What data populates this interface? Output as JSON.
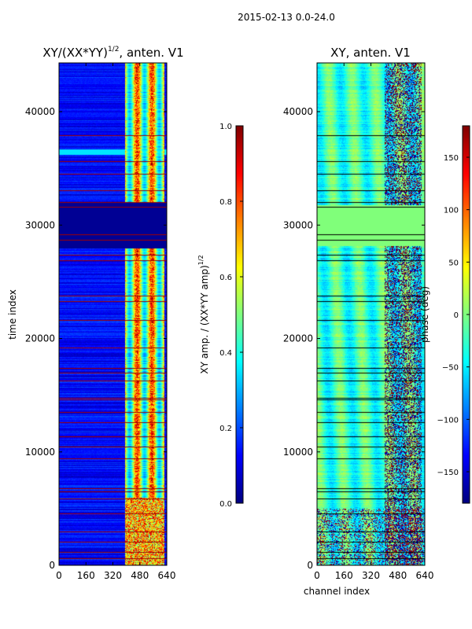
{
  "figure": {
    "suptitle": "2015-02-13 0.0-24.0"
  },
  "chart_data": [
    {
      "type": "heatmap",
      "title": "XY/(XX*YY)^1/2, anten. V1",
      "title_main": "XY/(XX*YY)",
      "title_sup": "1/2",
      "title_tail": ", anten. V1",
      "xlabel": "",
      "ylabel": "time index",
      "xlim": [
        0,
        640
      ],
      "ylim": [
        0,
        44300
      ],
      "xticks": [
        0,
        160,
        320,
        480,
        640
      ],
      "yticks": [
        0,
        10000,
        20000,
        30000,
        40000
      ],
      "colorbar": {
        "label_main": "XY amp. / (XX*YY amp)",
        "label_sup": "1/2",
        "range": [
          0.0,
          1.0
        ],
        "ticks": [
          "0.0",
          "0.2",
          "0.4",
          "0.6",
          "0.8",
          "1.0"
        ],
        "tick_values": [
          0.0,
          0.2,
          0.4,
          0.6,
          0.8,
          1.0
        ]
      },
      "description": "Normalized amplitude mostly low (~0.0-0.2) for channels 0-400, elevated and highly variable (0.3-1.0) for channels ~400-620; horizontal red flag lines at many time indices; low block between ~28000 and ~32000.",
      "flag_rows": [
        600,
        1200,
        2100,
        3000,
        4600,
        5900,
        6500,
        6800,
        9400,
        10500,
        11400,
        12600,
        13500,
        14600,
        14800,
        16300,
        17000,
        17400,
        19200,
        21600,
        23300,
        23800,
        26900,
        27400,
        28700,
        29200,
        31600,
        32000,
        33100,
        34500,
        35600,
        37900
      ]
    },
    {
      "type": "heatmap",
      "title": "XY, anten. V1",
      "xlabel": "channel index",
      "ylabel": "",
      "xlim": [
        0,
        640
      ],
      "ylim": [
        0,
        44300
      ],
      "xticks": [
        0,
        160,
        320,
        480,
        640
      ],
      "yticks": [
        0,
        10000,
        20000,
        30000,
        40000
      ],
      "colorbar": {
        "label": "phase (deg)",
        "range": [
          -180,
          180
        ],
        "ticks": [
          "150",
          "100",
          "50",
          "0",
          "−50",
          "−100",
          "−150"
        ],
        "tick_values": [
          150,
          100,
          50,
          0,
          -50,
          -100,
          -150
        ]
      },
      "description": "Phase with vertical banded structure across channels, mostly -50 to +50 deg with patches of +/-180 deg at channels ~400-620; uniform ~0 deg block between ~28000 and ~32000; black horizontal flag lines.",
      "flag_rows": [
        600,
        1200,
        2100,
        3000,
        4600,
        5900,
        6500,
        6800,
        9400,
        10500,
        11400,
        12600,
        13500,
        14600,
        14800,
        16300,
        17000,
        17400,
        19200,
        21600,
        23300,
        23800,
        26900,
        27400,
        28700,
        29200,
        31600,
        32000,
        33100,
        34500,
        35600,
        37900
      ]
    }
  ],
  "colors": {
    "flag_left": "#a00000",
    "flag_right": "#000000",
    "uniform_block": "#80ff7a"
  }
}
